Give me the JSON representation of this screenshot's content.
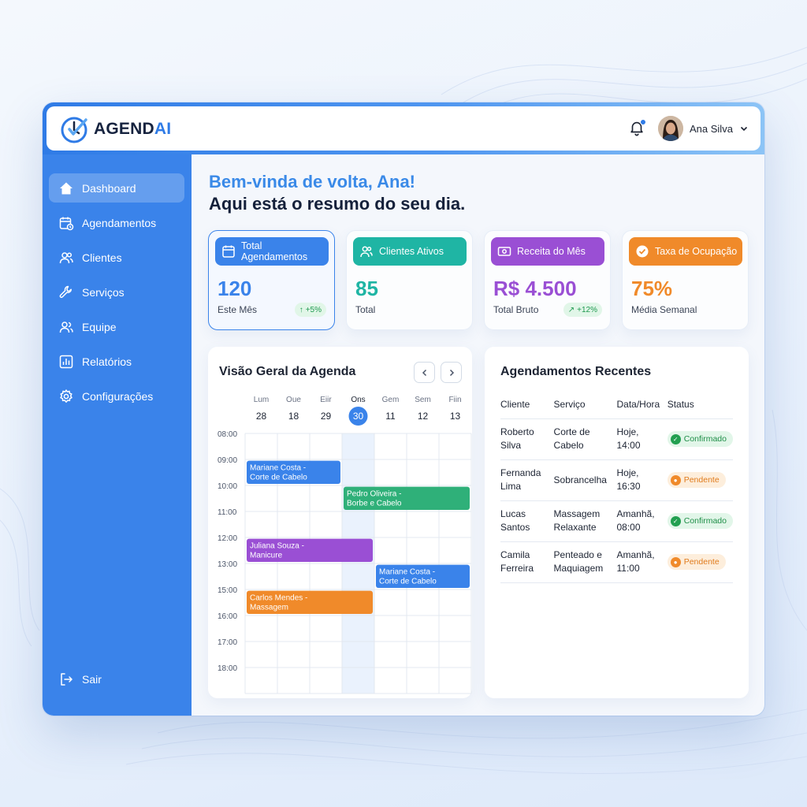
{
  "app": {
    "logo_part1": "AGEND",
    "logo_part2": "AI",
    "brand_color": "#2f7be6"
  },
  "header": {
    "user_name": "Ana Silva",
    "notification_icon": "bell-icon",
    "user_menu_icon": "chevron-down-icon"
  },
  "sidebar": {
    "items": [
      {
        "label": "Dashboard",
        "icon": "home-icon",
        "active": true
      },
      {
        "label": "Agendamentos",
        "icon": "calendar-clock-icon"
      },
      {
        "label": "Clientes",
        "icon": "users-icon"
      },
      {
        "label": "Serviços",
        "icon": "wrench-icon"
      },
      {
        "label": "Equipe",
        "icon": "team-icon"
      },
      {
        "label": "Relatórios",
        "icon": "bar-chart-icon"
      },
      {
        "label": "Configurações",
        "icon": "gear-icon"
      }
    ],
    "logout": "Sair"
  },
  "greeting": {
    "line1": "Bem-vinda de volta, Ana!",
    "line2": "Aqui está o resumo do seu dia."
  },
  "stats": [
    {
      "title": "Total Agendamentos",
      "value": "120",
      "sub": "Este Mês",
      "badge": "+5%",
      "color": "#3a83ea",
      "icon": "calendar-icon"
    },
    {
      "title": "Clientes Ativos",
      "value": "85",
      "sub": "Total",
      "color": "#1fb5a4",
      "icon": "users-icon"
    },
    {
      "title": "Receita do Mês",
      "value": "R$ 4.500",
      "sub": "Total Bruto",
      "badge": "+12%",
      "color": "#9a4fd4",
      "icon": "money-icon"
    },
    {
      "title": "Taxa de Ocupação",
      "value": "75%",
      "sub": "Média Semanal",
      "color": "#f08a2a",
      "icon": "check-circle-icon"
    }
  ],
  "calendar": {
    "title": "Visão Geral da Agenda",
    "days": [
      {
        "name": "Lum",
        "num": "28"
      },
      {
        "name": "Oue",
        "num": "18"
      },
      {
        "name": "Eiir",
        "num": "29"
      },
      {
        "name": "Ons",
        "num": "30",
        "today": true
      },
      {
        "name": "Gem",
        "num": "11"
      },
      {
        "name": "Sem",
        "num": "12"
      },
      {
        "name": "Fiin",
        "num": "13"
      }
    ],
    "hours": [
      "08:00",
      "09:00",
      "10:00",
      "11:00",
      "12:00",
      "13:00",
      "15:00",
      "16:00",
      "17:00",
      "18:00"
    ],
    "events": [
      {
        "line1": "Mariane Costa -",
        "line2": "Corte de Cabelo",
        "col": 0,
        "span": 3,
        "row": 1.05,
        "len": 0.95,
        "color": "#3a83ea"
      },
      {
        "line1": "Pedro Oliveira -",
        "line2": "Borbe e Cabelo",
        "col": 3,
        "span": 4,
        "row": 2.05,
        "len": 0.95,
        "color": "#2fb079"
      },
      {
        "line1": "Juliana Souza -",
        "line2": "Manicure",
        "col": 0,
        "span": 4,
        "row": 4.05,
        "len": 0.95,
        "color": "#9a4fd4"
      },
      {
        "line1": "Mariane Costa -",
        "line2": "Corte de Cabelo",
        "col": 4,
        "span": 3,
        "row": 5.05,
        "len": 0.95,
        "color": "#3a83ea"
      },
      {
        "line1": "Carlos Mendes -",
        "line2": "Massagem",
        "col": 0,
        "span": 4,
        "row": 6.05,
        "len": 0.95,
        "color": "#f08a2a"
      }
    ]
  },
  "recent": {
    "title": "Agendamentos Recentes",
    "headers": [
      "Cliente",
      "Serviço",
      "Data/Hora",
      "Status"
    ],
    "rows": [
      {
        "client1": "Roberto",
        "client2": "Silva",
        "service1": "Corte de",
        "service2": "Cabelo",
        "date1": "Hoje,",
        "date2": "14:00",
        "status": "Confirmado",
        "kind": "ok"
      },
      {
        "client1": "Fernanda",
        "client2": "Lima",
        "service1": "Sobrancelha",
        "service2": "",
        "date1": "Hoje,",
        "date2": "16:30",
        "status": "Pendente",
        "kind": "pend"
      },
      {
        "client1": "Lucas",
        "client2": "Santos",
        "service1": "Massagem",
        "service2": "Relaxante",
        "date1": "Amanhã,",
        "date2": "08:00",
        "status": "Confirmado",
        "kind": "ok"
      },
      {
        "client1": "Camila",
        "client2": "Ferreira",
        "service1": "Penteado e",
        "service2": "Maquiagem",
        "date1": "Amanhã,",
        "date2": "11:00",
        "status": "Pendente",
        "kind": "pend"
      }
    ]
  }
}
